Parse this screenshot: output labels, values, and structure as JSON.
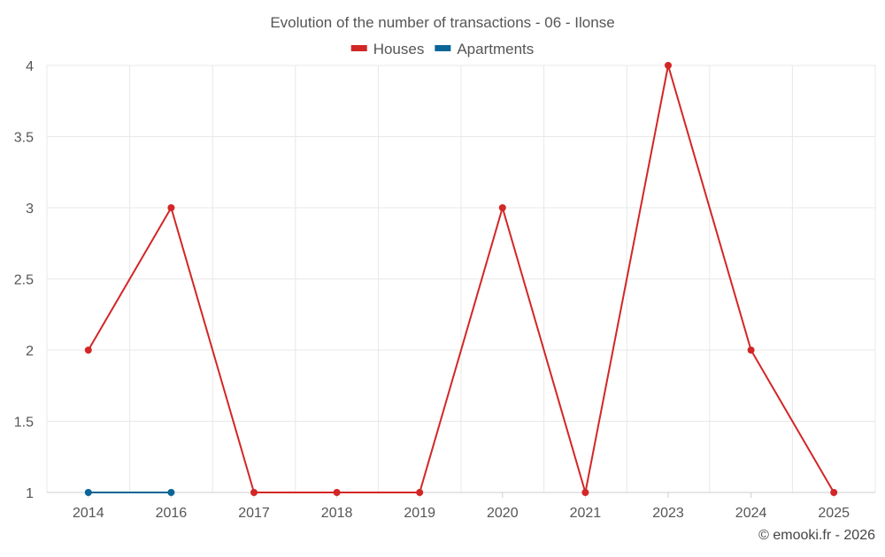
{
  "chart_data": {
    "type": "line",
    "title": "Evolution of the number of transactions - 06 - Ilonse",
    "categories": [
      "2014",
      "2016",
      "2017",
      "2018",
      "2019",
      "2020",
      "2021",
      "2023",
      "2024",
      "2025"
    ],
    "series": [
      {
        "name": "Houses",
        "color": "#d32626",
        "values": [
          2,
          3,
          1,
          1,
          1,
          3,
          1,
          4,
          2,
          1
        ]
      },
      {
        "name": "Apartments",
        "color": "#0b6597",
        "values": [
          1,
          1,
          null,
          null,
          null,
          null,
          null,
          null,
          null,
          null
        ]
      }
    ],
    "y_ticks": [
      "1",
      "1.5",
      "2",
      "2.5",
      "3",
      "3.5",
      "4"
    ],
    "ylim": [
      1,
      4
    ],
    "grid": true,
    "legend_position": "top-center"
  },
  "credit": "© emooki.fr - 2026"
}
